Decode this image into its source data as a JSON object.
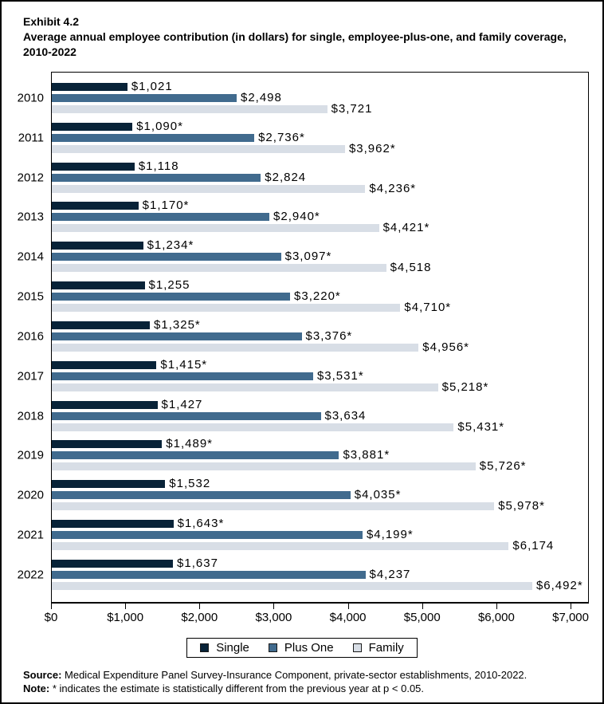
{
  "header": {
    "exhibit": "Exhibit 4.2",
    "title": "Average annual employee contribution (in dollars) for single, employee-plus-one, and family coverage, 2010-2022"
  },
  "chart_data": {
    "type": "bar",
    "orientation": "horizontal",
    "title": "Average annual employee contribution (in dollars) for single, employee-plus-one, and family coverage, 2010-2022",
    "categories": [
      "2010",
      "2011",
      "2012",
      "2013",
      "2014",
      "2015",
      "2016",
      "2017",
      "2018",
      "2019",
      "2020",
      "2021",
      "2022"
    ],
    "series": [
      {
        "name": "Single",
        "color": "#082338",
        "values": [
          1021,
          1090,
          1118,
          1170,
          1234,
          1255,
          1325,
          1415,
          1427,
          1489,
          1532,
          1643,
          1637
        ],
        "labels": [
          "$1,021",
          "$1,090*",
          "$1,118",
          "$1,170*",
          "$1,234*",
          "$1,255",
          "$1,325*",
          "$1,415*",
          "$1,427",
          "$1,489*",
          "$1,532",
          "$1,643*",
          "$1,637"
        ]
      },
      {
        "name": "Plus One",
        "color": "#416b8e",
        "values": [
          2498,
          2736,
          2824,
          2940,
          3097,
          3220,
          3376,
          3531,
          3634,
          3881,
          4035,
          4199,
          4237
        ],
        "labels": [
          "$2,498",
          "$2,736*",
          "$2,824",
          "$2,940*",
          "$3,097*",
          "$3,220*",
          "$3,376*",
          "$3,531*",
          "$3,634",
          "$3,881*",
          "$4,035*",
          "$4,199*",
          "$4,237"
        ]
      },
      {
        "name": "Family",
        "color": "#d8dee6",
        "values": [
          3721,
          3962,
          4236,
          4421,
          4518,
          4710,
          4956,
          5218,
          5431,
          5726,
          5978,
          6174,
          6492
        ],
        "labels": [
          "$3,721",
          "$3,962*",
          "$4,236*",
          "$4,421*",
          "$4,518",
          "$4,710*",
          "$4,956*",
          "$5,218*",
          "$5,431*",
          "$5,726*",
          "$5,978*",
          "$6,174",
          "$6,492*"
        ]
      }
    ],
    "xlim": [
      0,
      7000
    ],
    "x_ticks": [
      {
        "value": 0,
        "label": "$0"
      },
      {
        "value": 1000,
        "label": "$1,000"
      },
      {
        "value": 2000,
        "label": "$2,000"
      },
      {
        "value": 3000,
        "label": "$3,000"
      },
      {
        "value": 4000,
        "label": "$4,000"
      },
      {
        "value": 5000,
        "label": "$5,000"
      },
      {
        "value": 6000,
        "label": "$6,000"
      },
      {
        "value": 7000,
        "label": "$7,000"
      }
    ],
    "axis_max_fraction": 0.966,
    "grid": false,
    "legend_position": "bottom",
    "legend_entries": [
      "Single",
      "Plus One",
      "Family"
    ]
  },
  "footer": {
    "source_label": "Source:",
    "source_text": " Medical Expenditure Panel Survey-Insurance Component, private-sector establishments, 2010-2022.",
    "note_label": "Note:",
    "note_text": " * indicates the estimate is statistically different from the previous year at p < 0.05."
  }
}
